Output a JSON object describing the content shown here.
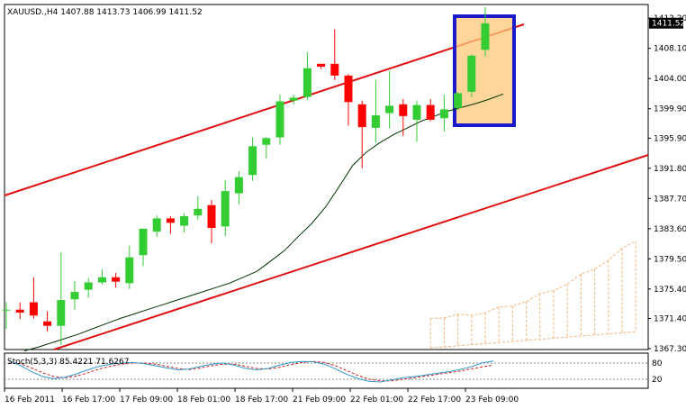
{
  "window": {
    "symbol_header": "XAUUSD.,H4  1407.88 1413.73 1406.99 1411.52"
  },
  "indicator": {
    "header": "Stoch(5,3,3) 85.4221 71.6267"
  },
  "colors": {
    "background": "#ffffff",
    "bull_candle": "#33cc33",
    "bear_candle": "#ff0000",
    "channel_line": "#e01010",
    "moving_average": "#003300",
    "highlight_fill": "#ffc878",
    "highlight_border": "#1a1acc",
    "ichimoku_cloud": "#f2b47a",
    "stoch_main": "#3399cc",
    "stoch_signal": "#cc2222"
  },
  "chart_data": {
    "type": "candlestick",
    "title": "XAUUSD.,H4",
    "ohlc_readout": {
      "open": 1407.88,
      "high": 1413.73,
      "low": 1406.99,
      "close": 1411.52
    },
    "current_price_label": "1411.52",
    "y_axis": {
      "ticks": [
        "1412.20",
        "1408.10",
        "1404.00",
        "1399.90",
        "1395.90",
        "1391.80",
        "1387.70",
        "1383.60",
        "1379.50",
        "1375.40",
        "1371.40",
        "1367.30"
      ],
      "range": [
        1367.3,
        1414
      ]
    },
    "x_axis": {
      "ticks": [
        "16 Feb 2011",
        "16 Feb 17:00",
        "17 Feb 09:00",
        "18 Feb 01:00",
        "18 Feb 17:00",
        "21 Feb 09:00",
        "22 Feb 01:00",
        "22 Feb 17:00",
        "23 Feb 09:00"
      ]
    },
    "candles": [
      {
        "o": 1372.6,
        "h": 1373.6,
        "l": 1370.0,
        "c": 1372.6
      },
      {
        "o": 1372.6,
        "h": 1373.6,
        "l": 1371.3,
        "c": 1372.2
      },
      {
        "o": 1373.6,
        "h": 1377.0,
        "l": 1371.4,
        "c": 1371.8
      },
      {
        "o": 1371.0,
        "h": 1372.4,
        "l": 1369.6,
        "c": 1370.4
      },
      {
        "o": 1370.4,
        "h": 1380.4,
        "l": 1367.8,
        "c": 1373.9
      },
      {
        "o": 1374.0,
        "h": 1376.5,
        "l": 1372.6,
        "c": 1375.0
      },
      {
        "o": 1375.3,
        "h": 1376.9,
        "l": 1374.2,
        "c": 1376.3
      },
      {
        "o": 1376.3,
        "h": 1378.1,
        "l": 1376.0,
        "c": 1377.0
      },
      {
        "o": 1377.0,
        "h": 1377.6,
        "l": 1375.6,
        "c": 1376.4
      },
      {
        "o": 1376.2,
        "h": 1381.3,
        "l": 1375.4,
        "c": 1379.7
      },
      {
        "o": 1380.0,
        "h": 1383.6,
        "l": 1378.5,
        "c": 1383.6
      },
      {
        "o": 1383.2,
        "h": 1385.4,
        "l": 1382.5,
        "c": 1385.0
      },
      {
        "o": 1385.0,
        "h": 1385.3,
        "l": 1382.9,
        "c": 1384.4
      },
      {
        "o": 1384.0,
        "h": 1385.7,
        "l": 1383.1,
        "c": 1385.3
      },
      {
        "o": 1385.4,
        "h": 1388.0,
        "l": 1384.8,
        "c": 1386.3
      },
      {
        "o": 1386.8,
        "h": 1387.5,
        "l": 1381.6,
        "c": 1383.7
      },
      {
        "o": 1383.9,
        "h": 1390.2,
        "l": 1382.6,
        "c": 1388.7
      },
      {
        "o": 1388.4,
        "h": 1391.4,
        "l": 1386.9,
        "c": 1390.6
      },
      {
        "o": 1390.9,
        "h": 1396.0,
        "l": 1390.1,
        "c": 1394.8
      },
      {
        "o": 1395.0,
        "h": 1396.1,
        "l": 1393.1,
        "c": 1395.9
      },
      {
        "o": 1396.0,
        "h": 1401.8,
        "l": 1395.0,
        "c": 1400.9
      },
      {
        "o": 1401.0,
        "h": 1401.8,
        "l": 1400.5,
        "c": 1401.4
      },
      {
        "o": 1401.5,
        "h": 1407.6,
        "l": 1401.1,
        "c": 1405.4
      },
      {
        "o": 1406.0,
        "h": 1406.0,
        "l": 1405.3,
        "c": 1405.6
      },
      {
        "o": 1406.0,
        "h": 1410.7,
        "l": 1403.8,
        "c": 1404.4
      },
      {
        "o": 1404.4,
        "h": 1404.6,
        "l": 1397.6,
        "c": 1400.8
      },
      {
        "o": 1400.5,
        "h": 1401.0,
        "l": 1391.8,
        "c": 1397.4
      },
      {
        "o": 1397.3,
        "h": 1403.8,
        "l": 1395.3,
        "c": 1399.0
      },
      {
        "o": 1399.3,
        "h": 1405.0,
        "l": 1397.2,
        "c": 1400.3
      },
      {
        "o": 1400.5,
        "h": 1401.2,
        "l": 1396.2,
        "c": 1398.9
      },
      {
        "o": 1398.4,
        "h": 1401.0,
        "l": 1395.4,
        "c": 1400.4
      },
      {
        "o": 1400.4,
        "h": 1401.2,
        "l": 1398.2,
        "c": 1398.4
      },
      {
        "o": 1398.6,
        "h": 1401.8,
        "l": 1396.8,
        "c": 1399.8
      },
      {
        "o": 1400.0,
        "h": 1402.1,
        "l": 1399.7,
        "c": 1402.0
      },
      {
        "o": 1402.2,
        "h": 1407.3,
        "l": 1401.5,
        "c": 1407.1
      },
      {
        "o": 1407.9,
        "h": 1413.7,
        "l": 1407.0,
        "c": 1411.5
      }
    ],
    "moving_average": [
      1367.0,
      1367.5,
      1368.1,
      1368.7,
      1369.3,
      1370.0,
      1370.7,
      1371.4,
      1372.0,
      1372.6,
      1373.2,
      1373.8,
      1374.4,
      1375.0,
      1375.6,
      1376.2,
      1377.0,
      1377.8,
      1379.2,
      1380.6,
      1382.5,
      1384.3,
      1386.5,
      1389.3,
      1392.2,
      1394.0,
      1395.3,
      1396.4,
      1397.3,
      1398.2,
      1398.9,
      1399.6,
      1400.1,
      1400.6,
      1401.2,
      1401.9
    ],
    "stochastic": {
      "name": "Stoch(5,3,3)",
      "main_value": 85.4221,
      "signal_value": 71.6267,
      "levels": [
        "80",
        "20"
      ],
      "main": [
        88,
        72,
        48,
        30,
        22,
        28,
        40,
        55,
        68,
        76,
        80,
        82,
        78,
        70,
        62,
        55,
        58,
        68,
        76,
        80,
        72,
        60,
        55,
        60,
        72,
        82,
        86,
        85,
        76,
        58,
        38,
        22,
        12,
        10,
        18,
        26,
        30,
        36,
        42,
        48,
        56,
        66,
        80,
        88
      ],
      "signal": [
        80,
        78,
        62,
        44,
        30,
        26,
        32,
        44,
        58,
        68,
        76,
        80,
        80,
        76,
        68,
        60,
        56,
        62,
        70,
        76,
        76,
        68,
        60,
        58,
        64,
        74,
        82,
        86,
        82,
        70,
        52,
        34,
        20,
        14,
        14,
        20,
        26,
        32,
        38,
        44,
        50,
        58,
        66,
        72
      ]
    }
  }
}
